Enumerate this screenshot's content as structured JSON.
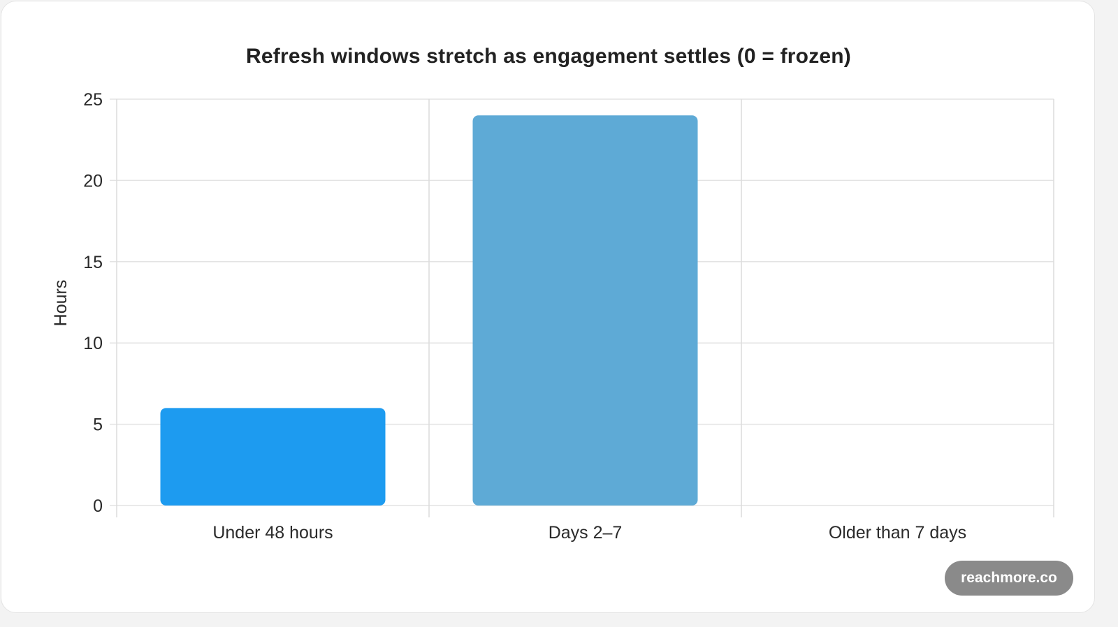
{
  "chart_data": {
    "type": "bar",
    "title": "Refresh windows stretch as engagement settles (0 = frozen)",
    "ylabel": "Hours",
    "xlabel": "",
    "categories": [
      "Under 48 hours",
      "Days 2–7",
      "Older than 7 days"
    ],
    "values": [
      6,
      24,
      0
    ],
    "bar_colors": [
      "#1d9bf0",
      "#5eaad6",
      "#5eaad6"
    ],
    "ylim": [
      0,
      25
    ],
    "yticks": [
      "0",
      "5",
      "10",
      "15",
      "20",
      "25"
    ],
    "grid": true,
    "legend": "none"
  },
  "watermark": {
    "text": "reachmore.co"
  }
}
